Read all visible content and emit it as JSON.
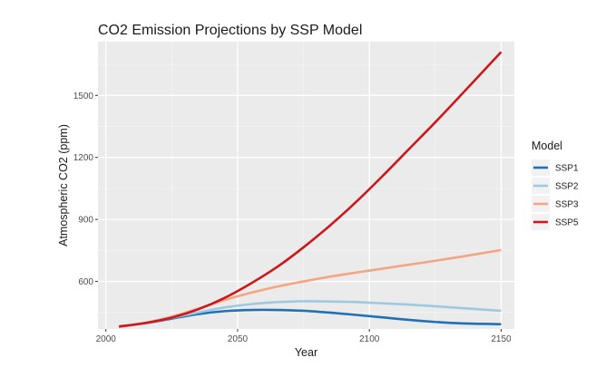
{
  "chart_data": {
    "type": "line",
    "title": "CO2 Emission Projections by SSP Model",
    "xlabel": "Year",
    "ylabel": "Atmospheric CO2 (ppm)",
    "xlim": [
      1997,
      2155
    ],
    "ylim": [
      370,
      1760
    ],
    "x_ticks": [
      2000,
      2050,
      2100,
      2150
    ],
    "y_ticks": [
      600,
      900,
      1200,
      1500
    ],
    "grid": true,
    "legend": {
      "title": "Model",
      "position": "right"
    },
    "series": [
      {
        "name": "SSP1",
        "color": "#2171b5",
        "points": [
          [
            2005,
            381
          ],
          [
            2015,
            398
          ],
          [
            2025,
            420
          ],
          [
            2035,
            442
          ],
          [
            2045,
            456
          ],
          [
            2055,
            462
          ],
          [
            2065,
            462
          ],
          [
            2075,
            458
          ],
          [
            2085,
            449
          ],
          [
            2095,
            438
          ],
          [
            2105,
            426
          ],
          [
            2115,
            414
          ],
          [
            2125,
            404
          ],
          [
            2135,
            397
          ],
          [
            2150,
            393
          ]
        ]
      },
      {
        "name": "SSP2",
        "color": "#9ecae1",
        "points": [
          [
            2005,
            381
          ],
          [
            2015,
            399
          ],
          [
            2025,
            424
          ],
          [
            2035,
            450
          ],
          [
            2045,
            474
          ],
          [
            2055,
            490
          ],
          [
            2065,
            500
          ],
          [
            2075,
            504
          ],
          [
            2085,
            503
          ],
          [
            2095,
            500
          ],
          [
            2105,
            494
          ],
          [
            2115,
            488
          ],
          [
            2125,
            480
          ],
          [
            2135,
            471
          ],
          [
            2150,
            458
          ]
        ]
      },
      {
        "name": "SSP3",
        "color": "#f4a582",
        "points": [
          [
            2005,
            379
          ],
          [
            2015,
            400
          ],
          [
            2025,
            430
          ],
          [
            2035,
            468
          ],
          [
            2045,
            510
          ],
          [
            2055,
            545
          ],
          [
            2065,
            575
          ],
          [
            2075,
            600
          ],
          [
            2085,
            623
          ],
          [
            2095,
            643
          ],
          [
            2105,
            662
          ],
          [
            2115,
            681
          ],
          [
            2125,
            700
          ],
          [
            2135,
            720
          ],
          [
            2150,
            752
          ]
        ]
      },
      {
        "name": "SSP5",
        "color": "#cb181d",
        "points": [
          [
            2005,
            382
          ],
          [
            2015,
            399
          ],
          [
            2025,
            425
          ],
          [
            2035,
            465
          ],
          [
            2045,
            520
          ],
          [
            2055,
            590
          ],
          [
            2065,
            670
          ],
          [
            2075,
            765
          ],
          [
            2085,
            870
          ],
          [
            2095,
            985
          ],
          [
            2105,
            1110
          ],
          [
            2115,
            1240
          ],
          [
            2125,
            1370
          ],
          [
            2135,
            1505
          ],
          [
            2150,
            1710
          ]
        ]
      }
    ]
  }
}
